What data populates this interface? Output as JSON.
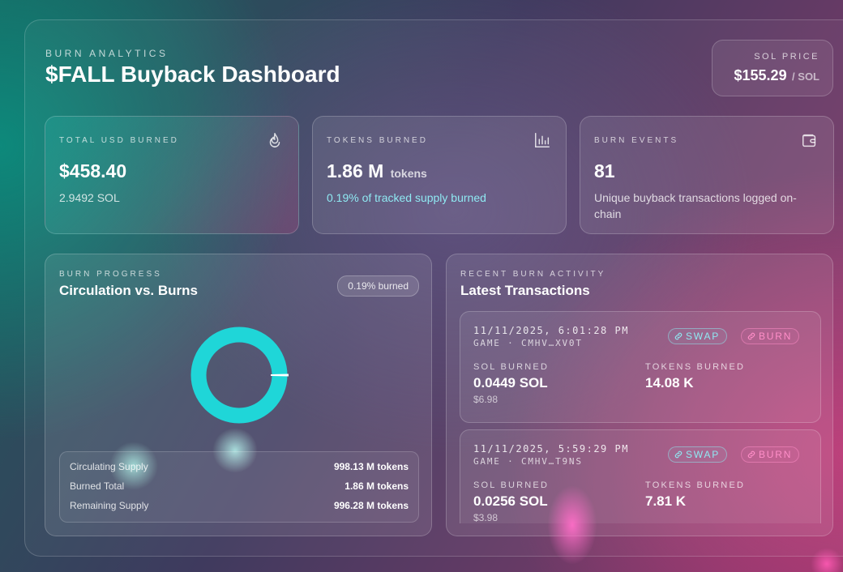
{
  "header": {
    "eyebrow": "BURN ANALYTICS",
    "title": "$FALL Buyback Dashboard",
    "sol_price": {
      "label": "SOL PRICE",
      "value": "$155.29",
      "unit": "/ SOL"
    }
  },
  "stats": [
    {
      "label": "TOTAL USD BURNED",
      "value": "$458.40",
      "unit": "",
      "sub": "2.9492 SOL",
      "icon": "flame-icon"
    },
    {
      "label": "TOKENS BURNED",
      "value": "1.86 M",
      "unit": "tokens",
      "sub": "0.19% of tracked supply burned",
      "icon": "bar-chart-icon",
      "accent": "#8fe9f2"
    },
    {
      "label": "BURN EVENTS",
      "value": "81",
      "unit": "",
      "sub": "Unique buyback transactions logged on-chain",
      "icon": "wallet-icon"
    }
  ],
  "progress": {
    "eyebrow": "BURN PROGRESS",
    "title": "Circulation vs. Burns",
    "badge": "0.19% burned",
    "burned_fraction": 0.0019,
    "colors": {
      "circulating": "#1fd6d8",
      "burned": "#ffffff"
    },
    "rows": [
      {
        "label": "Circulating Supply",
        "value": "998.13 M tokens"
      },
      {
        "label": "Burned Total",
        "value": "1.86 M tokens"
      },
      {
        "label": "Remaining Supply",
        "value": "996.28 M tokens"
      }
    ]
  },
  "activity": {
    "eyebrow": "RECENT BURN ACTIVITY",
    "title": "Latest Transactions",
    "tag_swap": "SWAP",
    "tag_burn": "BURN",
    "sol_label": "SOL BURNED",
    "tokens_label": "TOKENS BURNED",
    "transactions": [
      {
        "time": "11/11/2025, 6:01:28 PM",
        "ref": "GAME · CMHV…XV0T",
        "sol": "0.0449 SOL",
        "usd": "$6.98",
        "tokens": "14.08 K"
      },
      {
        "time": "11/11/2025, 5:59:29 PM",
        "ref": "GAME · CMHV…T9NS",
        "sol": "0.0256 SOL",
        "usd": "$3.98",
        "tokens": "7.81 K"
      }
    ]
  }
}
